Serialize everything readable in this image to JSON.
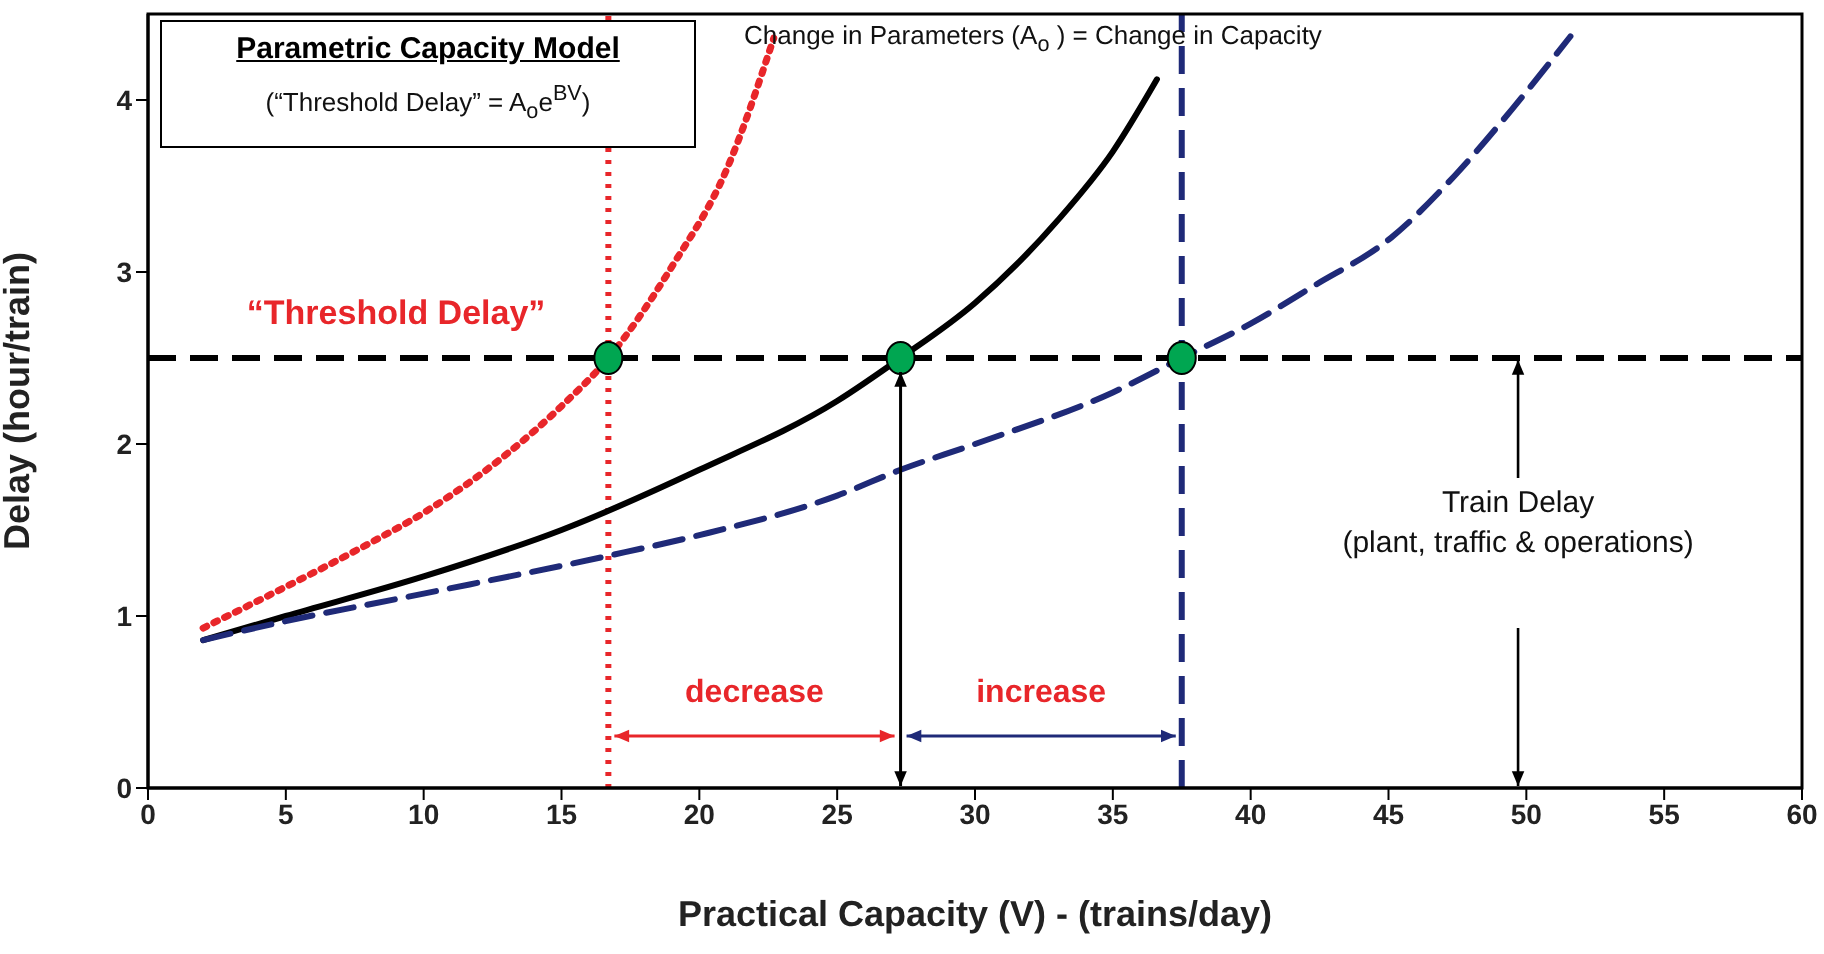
{
  "chart_data": {
    "type": "line",
    "title": "Parametric Capacity Model",
    "subtitle": "(“Threshold Delay” = A$_{o}$e$^{BV}$)",
    "xlabel": "Practical Capacity (V) - (trains/day)",
    "ylabel": "Delay (hour/train)",
    "xlim": [
      0,
      60
    ],
    "xticks": [
      0,
      5,
      10,
      15,
      20,
      25,
      30,
      35,
      40,
      45,
      50,
      55,
      60
    ],
    "ylim": [
      0,
      4.5
    ],
    "yticks": [
      0,
      1,
      2,
      3,
      4
    ],
    "grid": false,
    "legend": false,
    "marker": "none",
    "series": [
      {
        "color": "#e8262a",
        "line_style": "dotted",
        "x": [
          2,
          5,
          8,
          10,
          13,
          15,
          16.7,
          19,
          21,
          22.7
        ],
        "values": [
          0.93,
          1.17,
          1.42,
          1.6,
          1.94,
          2.22,
          2.5,
          3.03,
          3.6,
          4.36
        ]
      },
      {
        "color": "#000000",
        "line_style": "solid",
        "x": [
          2,
          5,
          10,
          15,
          20,
          25,
          27.3,
          30,
          33,
          35,
          36.6
        ],
        "values": [
          0.86,
          1.0,
          1.23,
          1.5,
          1.85,
          2.25,
          2.5,
          2.82,
          3.3,
          3.7,
          4.12
        ]
      },
      {
        "color": "#1f2a78",
        "line_style": "dashed",
        "x": [
          2,
          5,
          10,
          16.7,
          20,
          25,
          27.3,
          30,
          35,
          37.5,
          40,
          42.3,
          45.1,
          47.4,
          49.5,
          51.6
        ],
        "values": [
          0.86,
          0.97,
          1.13,
          1.35,
          1.47,
          1.7,
          1.85,
          2.0,
          2.3,
          2.5,
          2.7,
          2.92,
          3.2,
          3.56,
          3.95,
          4.37
        ]
      },
      {
        "type": "scatter",
        "color": "#00a651",
        "marker": "circle",
        "x": [
          16.7,
          27.3,
          37.5
        ],
        "values": [
          2.5,
          2.5,
          2.5
        ]
      }
    ],
    "ref_lines": [
      {
        "axis": "y",
        "value": 2.5,
        "color": "#000000",
        "line_style": "dashed"
      },
      {
        "axis": "x",
        "value": 16.7,
        "color": "#e8262a",
        "line_style": "dotted"
      },
      {
        "axis": "x",
        "value": 37.5,
        "color": "#1f2a78",
        "line_style": "dashed"
      }
    ],
    "annotations": [
      "Change in Parameters (A$_{o}$ ) = Change in Capacity",
      {
        "text": "“Threshold Delay”",
        "x": 9,
        "y": 2.5
      },
      "decrease",
      "increase",
      {
        "text": "Train Delay (plant, traffic & operations)",
        "x": 49.7,
        "y": 2.5
      }
    ]
  }
}
